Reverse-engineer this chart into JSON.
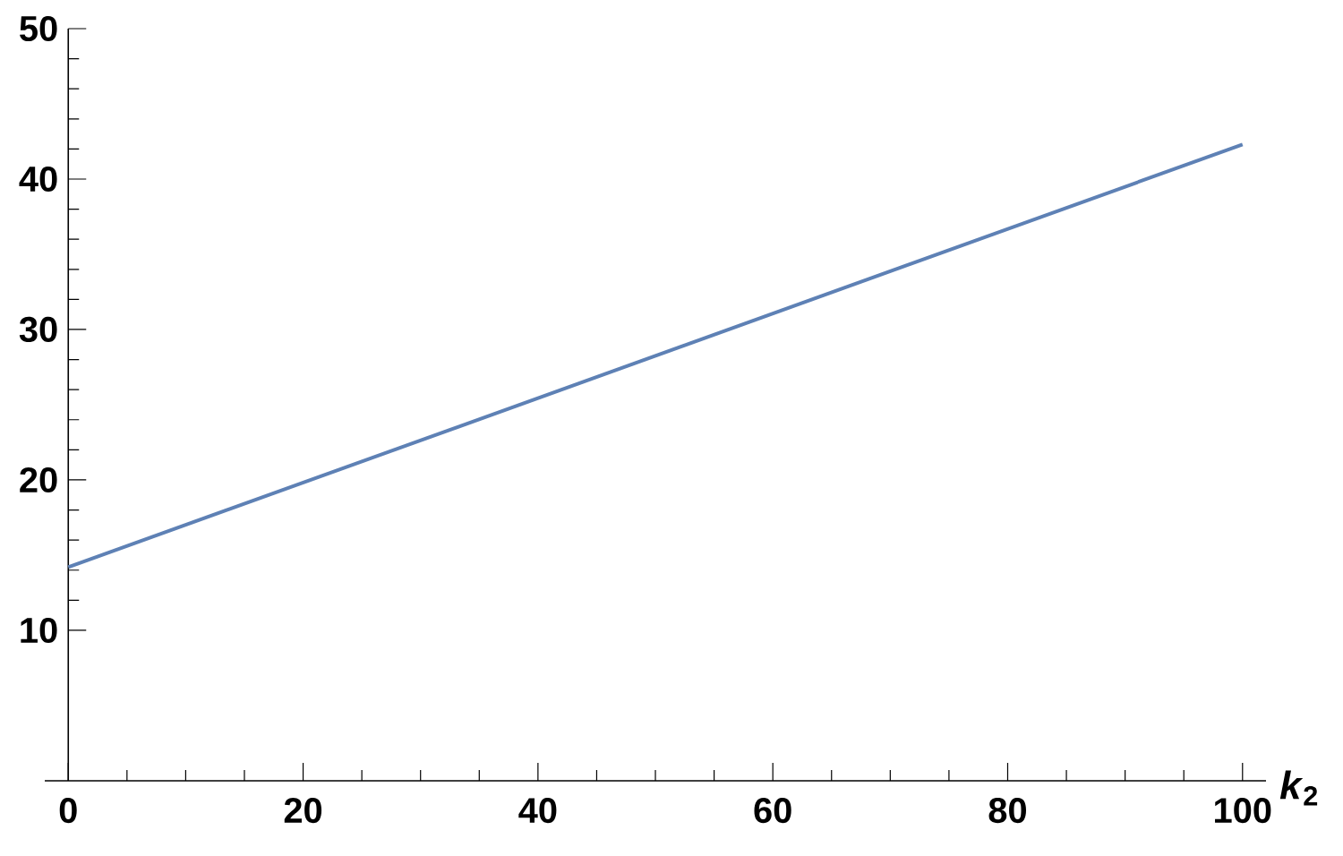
{
  "chart_data": {
    "type": "line",
    "xlabel": "*k*$_{2}$",
    "x": [
      0,
      100
    ],
    "series": [
      {
        "color": "#5e81b5",
        "values": [
          14.2,
          42.3
        ]
      }
    ],
    "xlim": [
      -2,
      102
    ],
    "ylim": [
      0,
      50
    ],
    "xticks": [
      0,
      20,
      40,
      60,
      80,
      100
    ],
    "yticks": [
      10,
      20,
      30,
      40,
      50
    ],
    "grid": false,
    "marker": "none",
    "line_style": "solid"
  }
}
